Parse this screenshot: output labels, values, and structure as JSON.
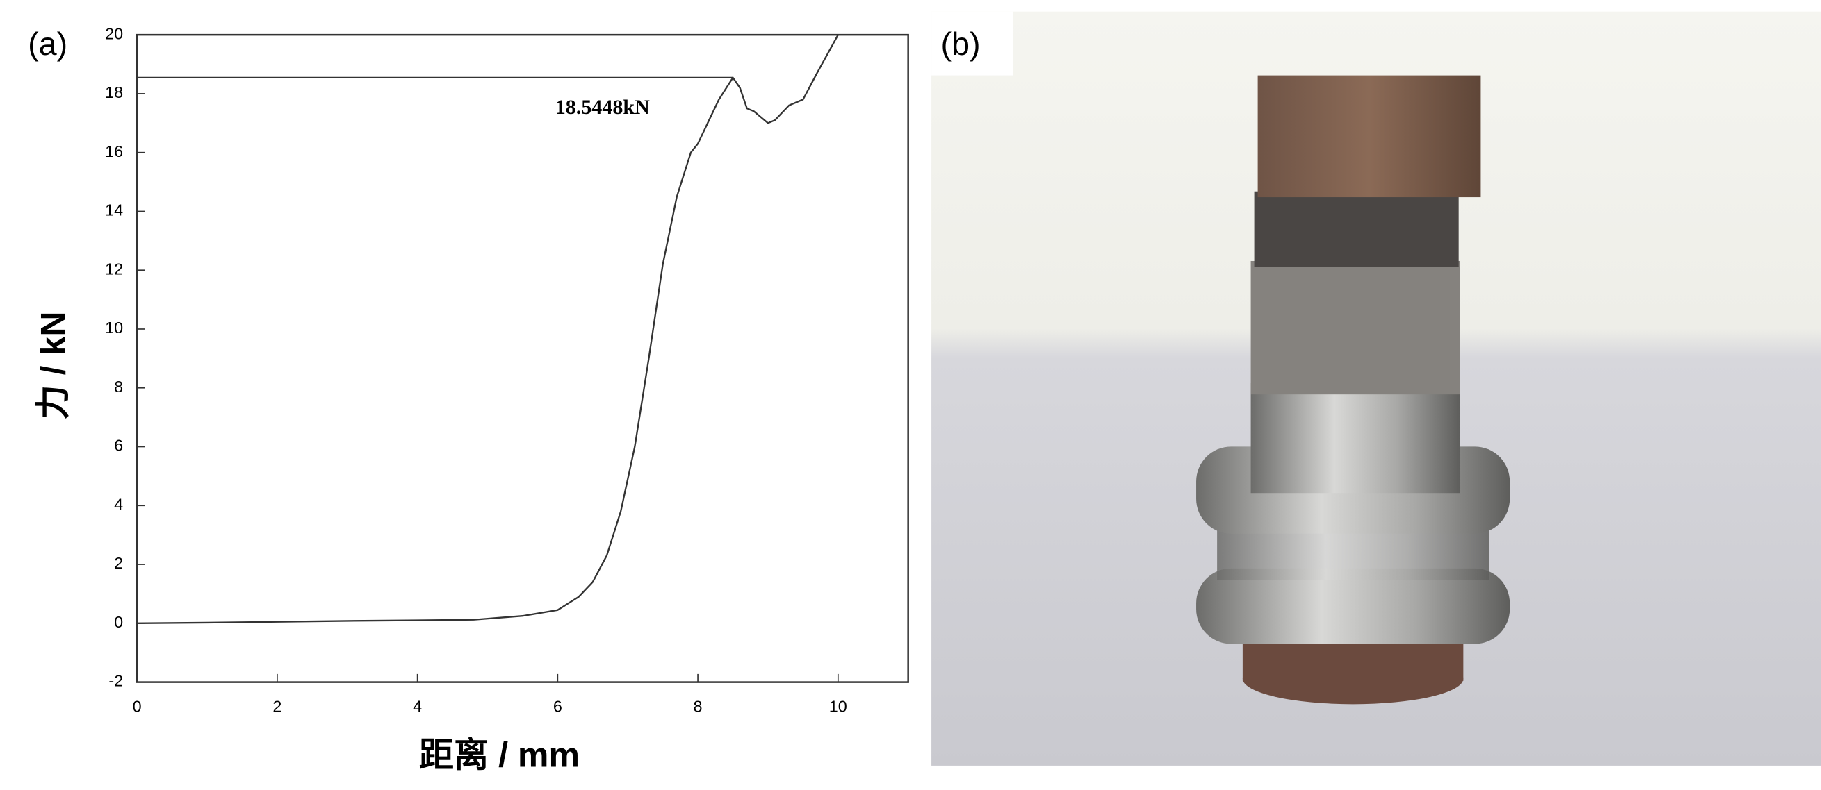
{
  "panel_labels": [
    "(a)",
    "(b)"
  ],
  "chart_data": {
    "type": "line",
    "xlabel": "距离 / mm",
    "ylabel": "力 / kN",
    "xlim": [
      0,
      11
    ],
    "ylim": [
      -2,
      20
    ],
    "xticks": [
      0,
      2,
      4,
      6,
      8,
      10
    ],
    "yticks": [
      -2,
      0,
      2,
      4,
      6,
      8,
      10,
      12,
      14,
      16,
      18,
      20
    ],
    "x": [
      0,
      1,
      2,
      3,
      4,
      4.8,
      5.5,
      6,
      6.3,
      6.5,
      6.7,
      6.9,
      7.1,
      7.3,
      7.5,
      7.7,
      7.9,
      8.0,
      8.1,
      8.3,
      8.5,
      8.6,
      8.7,
      8.8,
      9.0,
      9.1,
      9.3,
      9.5,
      9.7,
      10.0
    ],
    "series": [
      {
        "color": "#333333",
        "values": [
          0,
          0.02,
          0.05,
          0.08,
          0.1,
          0.12,
          0.25,
          0.45,
          0.9,
          1.4,
          2.3,
          3.8,
          6,
          9,
          12.2,
          14.5,
          16,
          16.3,
          16.8,
          17.8,
          18.5448,
          18.2,
          17.5,
          17.4,
          17.0,
          17.1,
          17.6,
          17.8,
          18.7,
          20
        ]
      }
    ],
    "peak": {
      "x": 8.5,
      "y": 18.5448,
      "label": "18.5448kN"
    }
  }
}
